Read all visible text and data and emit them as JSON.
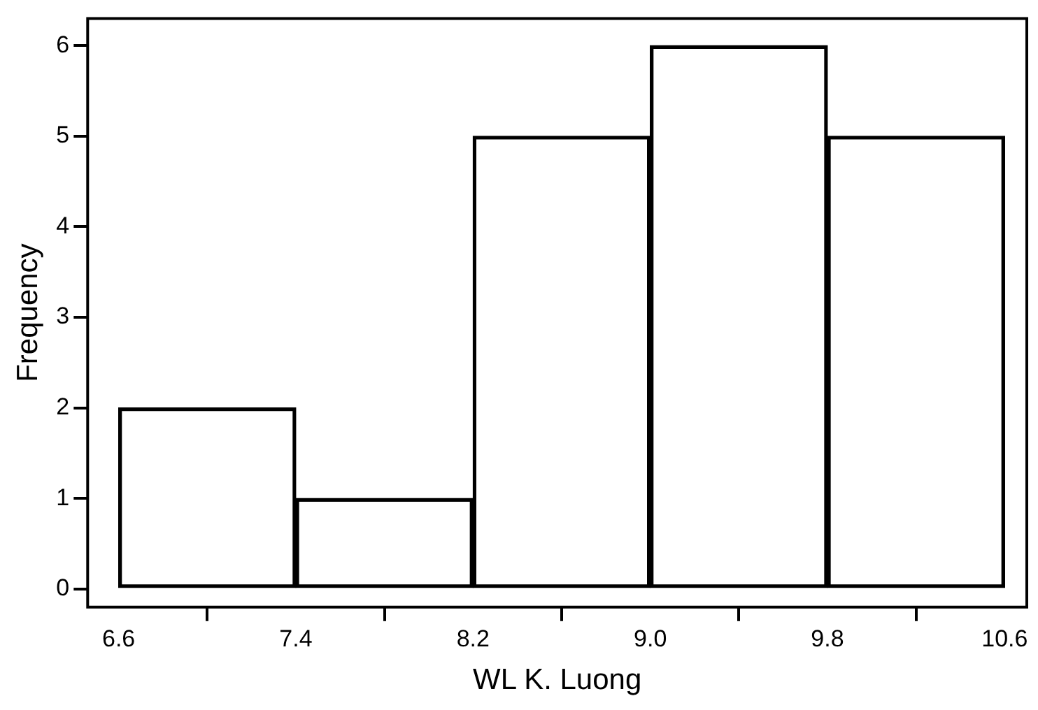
{
  "chart_data": {
    "type": "histogram",
    "xlabel": "WL K. Luong",
    "ylabel": "Frequency",
    "bins": [
      6.6,
      7.4,
      8.2,
      9.0,
      9.8,
      10.6
    ],
    "values": [
      2,
      1,
      5,
      6,
      5
    ],
    "color": "#000000",
    "xlim": [
      6.46,
      10.7
    ],
    "ylim": [
      -0.2,
      6.3
    ],
    "xticks": [
      {
        "value": 6.6,
        "label": "6.6"
      },
      {
        "value": 7.4,
        "label": "7.4"
      },
      {
        "value": 8.2,
        "label": "8.2"
      },
      {
        "value": 9.0,
        "label": "9.0"
      },
      {
        "value": 9.8,
        "label": "9.8"
      },
      {
        "value": 10.6,
        "label": "10.6"
      }
    ],
    "yticks": [
      0,
      1,
      2,
      3,
      4,
      5,
      6
    ],
    "grid": false,
    "legend": false
  }
}
